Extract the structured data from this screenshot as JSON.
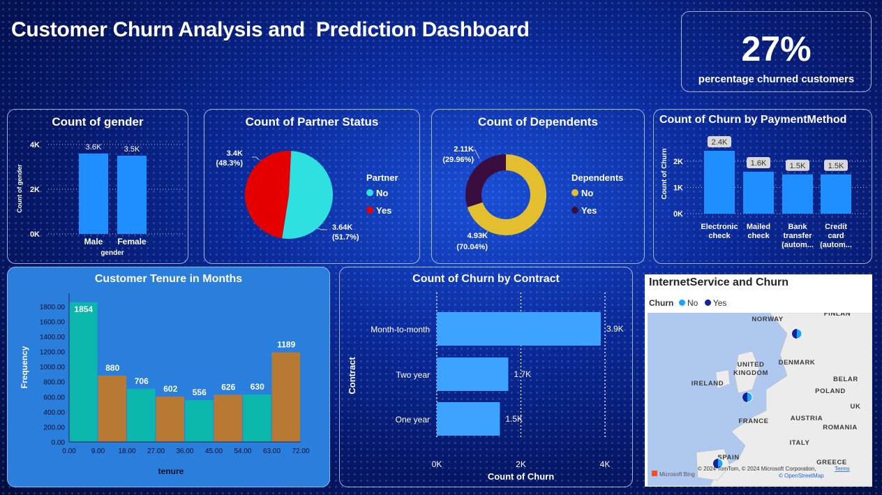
{
  "dashboard": {
    "title": "Customer Churn Analysis and  Prediction Dashboard"
  },
  "kpi": {
    "value": "27%",
    "label": "percentage churned customers"
  },
  "gender": {
    "title": "Count of gender",
    "xlabel": "gender",
    "ylabel": "Count of gender",
    "yticks": [
      "4K",
      "2K",
      "0K"
    ]
  },
  "partner": {
    "title": "Count of Partner Status",
    "legend_title": "Partner",
    "legend": [
      "No",
      "Yes"
    ],
    "label_yes": [
      "3.4K",
      "(48.3%)"
    ],
    "label_no": [
      "3.64K",
      "(51.7%)"
    ]
  },
  "dependents": {
    "title": "Count of Dependents",
    "legend_title": "Dependents",
    "legend": [
      "No",
      "Yes"
    ],
    "label_yes": [
      "2.11K",
      "(29.96%)"
    ],
    "label_no": [
      "4.93K",
      "(70.04%)"
    ]
  },
  "payment": {
    "title": "Count of Churn by PaymentMethod",
    "ylabel": "Count of Churn",
    "yticks": [
      "2K",
      "1K",
      "0K"
    ],
    "cat_lines": [
      [
        "Electronic",
        "check"
      ],
      [
        "Mailed",
        "check"
      ],
      [
        "Bank",
        "transfer",
        "(autom..."
      ],
      [
        "Credit",
        "card",
        "(autom..."
      ]
    ]
  },
  "tenure": {
    "title": "Customer Tenure in Months",
    "xlabel": "tenure",
    "ylabel": "Frequency",
    "yticks": [
      "1800.00",
      "1600.00",
      "1400.00",
      "1200.00",
      "1000.00",
      "800.00",
      "600.00",
      "400.00",
      "200.00",
      "0.00"
    ],
    "xticks": [
      "0.00",
      "9.00",
      "18.00",
      "27.00",
      "36.00",
      "45.00",
      "54.00",
      "63.00",
      "72.00"
    ]
  },
  "contract": {
    "title": "Count of Churn by Contract",
    "xlabel": "Count of Churn",
    "ylabel": "Contract",
    "xticks": [
      "0K",
      "2K",
      "4K"
    ]
  },
  "internet": {
    "title": "InternetService and Churn",
    "legend_title": "Churn",
    "legend": [
      "No",
      "Yes"
    ],
    "places": [
      "NORWAY",
      "FINLAN",
      "UNITED",
      "KINGDOM",
      "DENMARK",
      "IRELAND",
      "POLAND",
      "BELAR",
      "FRANCE",
      "AUSTRIA",
      "UK",
      "ROMANIA",
      "ITALY",
      "SPAIN",
      "GREECE"
    ],
    "attribution": "© 2024 TomTom, © 2024 Microsoft Corporation,",
    "terms": "Terms",
    "osm": "© OpenStreetMap",
    "bing": "Microsoft Bing"
  },
  "colors": {
    "bar_blue": "#1f8fff",
    "teal": "#0bb6ac",
    "brown": "#b87a32",
    "pie_red": "#e50000",
    "pie_cyan": "#2ee0e0",
    "donut_yellow": "#e3be2e",
    "donut_purple": "#3a0d3f"
  },
  "chart_data": [
    {
      "type": "bar",
      "title": "Count of gender",
      "categories": [
        "Male",
        "Female"
      ],
      "values": [
        3.6,
        3.5
      ],
      "value_labels": [
        "3.6K",
        "3.5K"
      ],
      "xlabel": "gender",
      "ylabel": "Count of gender",
      "ylim": [
        0,
        4
      ]
    },
    {
      "type": "pie",
      "title": "Count of Partner Status",
      "categories": [
        "No",
        "Yes"
      ],
      "values": [
        3.64,
        3.4
      ],
      "percent": [
        51.7,
        48.3
      ]
    },
    {
      "type": "pie",
      "title": "Count of Dependents",
      "categories": [
        "No",
        "Yes"
      ],
      "values": [
        4.93,
        2.11
      ],
      "percent": [
        70.04,
        29.96
      ],
      "donut": true
    },
    {
      "type": "bar",
      "title": "Count of Churn by PaymentMethod",
      "categories": [
        "Electronic check",
        "Mailed check",
        "Bank transfer (autom...",
        "Credit card (autom..."
      ],
      "values": [
        2.4,
        1.6,
        1.5,
        1.5
      ],
      "value_labels": [
        "2.4K",
        "1.6K",
        "1.5K",
        "1.5K"
      ],
      "ylabel": "Count of Churn",
      "ylim": [
        0,
        2.5
      ]
    },
    {
      "type": "bar",
      "title": "Customer Tenure in Months",
      "x": [
        0,
        9,
        18,
        27,
        36,
        45,
        54,
        63
      ],
      "values": [
        1854,
        880,
        706,
        602,
        556,
        626,
        630,
        1189
      ],
      "xlabel": "tenure",
      "ylabel": "Frequency",
      "xlim": [
        0,
        72
      ],
      "ylim": [
        0,
        1900
      ]
    },
    {
      "type": "bar",
      "title": "Count of Churn by Contract",
      "categories": [
        "Month-to-month",
        "Two year",
        "One year"
      ],
      "values": [
        3.9,
        1.7,
        1.5
      ],
      "value_labels": [
        "3.9K",
        "1.7K",
        "1.5K"
      ],
      "xlabel": "Count of Churn",
      "ylabel": "Contract",
      "xlim": [
        0,
        4
      ]
    }
  ]
}
